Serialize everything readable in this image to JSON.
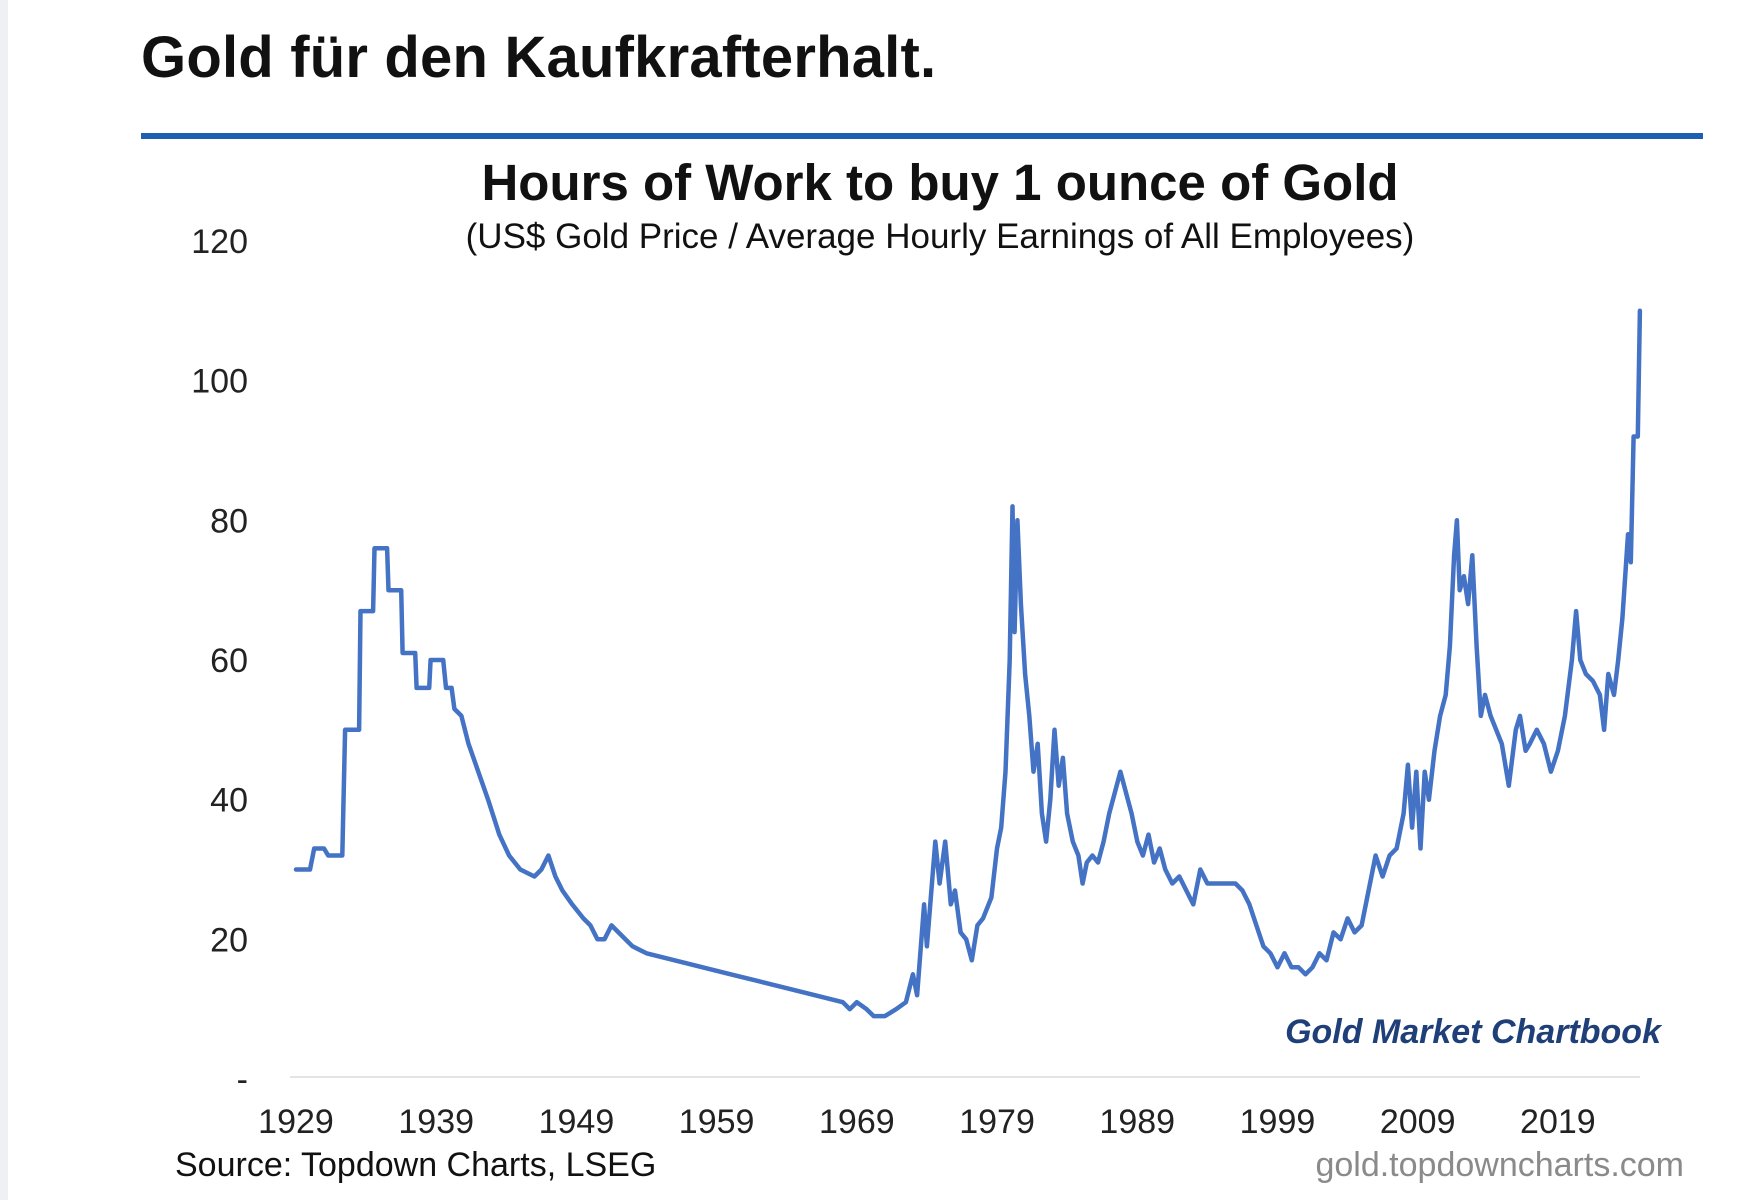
{
  "page": {
    "title": "Gold für den Kaufkrafterhalt.",
    "accent_color": "#1f5fb2"
  },
  "chart_data": {
    "type": "line",
    "title": "Hours of Work to buy 1 ounce of Gold",
    "subtitle": "(US$ Gold Price / Average Hourly Earnings of All Employees)",
    "xlabel": "",
    "ylabel": "",
    "xlim": [
      1929,
      2025
    ],
    "ylim": [
      0,
      120
    ],
    "x_ticks": [
      "1929",
      "1939",
      "1949",
      "1959",
      "1969",
      "1979",
      "1989",
      "1999",
      "2009",
      "2019"
    ],
    "y_ticks": [
      {
        "value": 120,
        "label": "120"
      },
      {
        "value": 100,
        "label": "100"
      },
      {
        "value": 80,
        "label": "80"
      },
      {
        "value": 60,
        "label": "60"
      },
      {
        "value": 40,
        "label": "40"
      },
      {
        "value": 20,
        "label": "20"
      },
      {
        "value": 0,
        "label": "-"
      }
    ],
    "grid": false,
    "legend": "none",
    "line_color": "#4472c4",
    "series": [
      {
        "values": [
          [
            1929.0,
            30
          ],
          [
            1930.0,
            30
          ],
          [
            1930.3,
            33
          ],
          [
            1931.0,
            33
          ],
          [
            1931.3,
            32
          ],
          [
            1932.3,
            32
          ],
          [
            1932.5,
            50
          ],
          [
            1933.5,
            50
          ],
          [
            1933.6,
            67
          ],
          [
            1934.5,
            67
          ],
          [
            1934.6,
            76
          ],
          [
            1935.5,
            76
          ],
          [
            1935.6,
            70
          ],
          [
            1936.5,
            70
          ],
          [
            1936.6,
            61
          ],
          [
            1937.5,
            61
          ],
          [
            1937.6,
            56
          ],
          [
            1938.5,
            56
          ],
          [
            1938.6,
            60
          ],
          [
            1939.5,
            60
          ],
          [
            1939.7,
            56
          ],
          [
            1940.1,
            56
          ],
          [
            1940.3,
            53
          ],
          [
            1940.8,
            52
          ],
          [
            1941.3,
            48
          ],
          [
            1942.0,
            44
          ],
          [
            1942.7,
            40
          ],
          [
            1943.5,
            35
          ],
          [
            1944.2,
            32
          ],
          [
            1945.0,
            30
          ],
          [
            1946.0,
            29
          ],
          [
            1946.5,
            30
          ],
          [
            1947.0,
            32
          ],
          [
            1947.5,
            29
          ],
          [
            1948.0,
            27
          ],
          [
            1948.7,
            25
          ],
          [
            1949.5,
            23
          ],
          [
            1950.0,
            22
          ],
          [
            1950.5,
            20
          ],
          [
            1951.0,
            20
          ],
          [
            1951.5,
            22
          ],
          [
            1952.0,
            21
          ],
          [
            1953.0,
            19
          ],
          [
            1954.0,
            18
          ],
          [
            1956.0,
            17
          ],
          [
            1958.0,
            16
          ],
          [
            1960.0,
            15
          ],
          [
            1962.0,
            14
          ],
          [
            1964.0,
            13
          ],
          [
            1966.0,
            12
          ],
          [
            1968.0,
            11
          ],
          [
            1968.5,
            10
          ],
          [
            1969.0,
            11
          ],
          [
            1969.7,
            10
          ],
          [
            1970.2,
            9
          ],
          [
            1971.0,
            9
          ],
          [
            1971.8,
            10
          ],
          [
            1972.5,
            11
          ],
          [
            1973.0,
            15
          ],
          [
            1973.3,
            12
          ],
          [
            1973.8,
            25
          ],
          [
            1974.0,
            19
          ],
          [
            1974.6,
            34
          ],
          [
            1974.9,
            28
          ],
          [
            1975.3,
            34
          ],
          [
            1975.7,
            25
          ],
          [
            1976.0,
            27
          ],
          [
            1976.4,
            21
          ],
          [
            1976.8,
            20
          ],
          [
            1977.2,
            17
          ],
          [
            1977.6,
            22
          ],
          [
            1978.0,
            23
          ],
          [
            1978.6,
            26
          ],
          [
            1979.0,
            33
          ],
          [
            1979.3,
            36
          ],
          [
            1979.6,
            44
          ],
          [
            1979.9,
            60
          ],
          [
            1980.1,
            82
          ],
          [
            1980.25,
            64
          ],
          [
            1980.45,
            80
          ],
          [
            1980.7,
            68
          ],
          [
            1981.0,
            58
          ],
          [
            1981.3,
            52
          ],
          [
            1981.6,
            44
          ],
          [
            1981.9,
            48
          ],
          [
            1982.2,
            38
          ],
          [
            1982.5,
            34
          ],
          [
            1982.8,
            40
          ],
          [
            1983.1,
            50
          ],
          [
            1983.4,
            42
          ],
          [
            1983.7,
            46
          ],
          [
            1984.0,
            38
          ],
          [
            1984.4,
            34
          ],
          [
            1984.8,
            32
          ],
          [
            1985.1,
            28
          ],
          [
            1985.4,
            31
          ],
          [
            1985.8,
            32
          ],
          [
            1986.2,
            31
          ],
          [
            1986.6,
            34
          ],
          [
            1987.0,
            38
          ],
          [
            1987.4,
            41
          ],
          [
            1987.8,
            44
          ],
          [
            1988.2,
            41
          ],
          [
            1988.6,
            38
          ],
          [
            1989.0,
            34
          ],
          [
            1989.4,
            32
          ],
          [
            1989.8,
            35
          ],
          [
            1990.2,
            31
          ],
          [
            1990.6,
            33
          ],
          [
            1991.0,
            30
          ],
          [
            1991.5,
            28
          ],
          [
            1992.0,
            29
          ],
          [
            1992.5,
            27
          ],
          [
            1993.0,
            25
          ],
          [
            1993.5,
            30
          ],
          [
            1994.0,
            28
          ],
          [
            1995.0,
            28
          ],
          [
            1996.0,
            28
          ],
          [
            1996.5,
            27
          ],
          [
            1997.0,
            25
          ],
          [
            1997.5,
            22
          ],
          [
            1998.0,
            19
          ],
          [
            1998.5,
            18
          ],
          [
            1999.0,
            16
          ],
          [
            1999.5,
            18
          ],
          [
            2000.0,
            16
          ],
          [
            2000.5,
            16
          ],
          [
            2001.0,
            15
          ],
          [
            2001.5,
            16
          ],
          [
            2002.0,
            18
          ],
          [
            2002.5,
            17
          ],
          [
            2003.0,
            21
          ],
          [
            2003.5,
            20
          ],
          [
            2004.0,
            23
          ],
          [
            2004.5,
            21
          ],
          [
            2005.0,
            22
          ],
          [
            2005.5,
            27
          ],
          [
            2006.0,
            32
          ],
          [
            2006.5,
            29
          ],
          [
            2007.0,
            32
          ],
          [
            2007.5,
            33
          ],
          [
            2008.0,
            38
          ],
          [
            2008.3,
            45
          ],
          [
            2008.6,
            36
          ],
          [
            2008.9,
            44
          ],
          [
            2009.2,
            33
          ],
          [
            2009.5,
            44
          ],
          [
            2009.8,
            40
          ],
          [
            2010.2,
            47
          ],
          [
            2010.6,
            52
          ],
          [
            2011.0,
            55
          ],
          [
            2011.3,
            62
          ],
          [
            2011.6,
            75
          ],
          [
            2011.8,
            80
          ],
          [
            2012.0,
            70
          ],
          [
            2012.3,
            72
          ],
          [
            2012.6,
            68
          ],
          [
            2012.9,
            75
          ],
          [
            2013.2,
            62
          ],
          [
            2013.5,
            52
          ],
          [
            2013.8,
            55
          ],
          [
            2014.2,
            52
          ],
          [
            2014.6,
            50
          ],
          [
            2015.0,
            48
          ],
          [
            2015.5,
            42
          ],
          [
            2016.0,
            50
          ],
          [
            2016.3,
            52
          ],
          [
            2016.7,
            47
          ],
          [
            2017.0,
            48
          ],
          [
            2017.5,
            50
          ],
          [
            2018.0,
            48
          ],
          [
            2018.5,
            44
          ],
          [
            2019.0,
            47
          ],
          [
            2019.5,
            52
          ],
          [
            2020.0,
            60
          ],
          [
            2020.3,
            67
          ],
          [
            2020.6,
            60
          ],
          [
            2021.0,
            58
          ],
          [
            2021.5,
            57
          ],
          [
            2022.0,
            55
          ],
          [
            2022.3,
            50
          ],
          [
            2022.6,
            58
          ],
          [
            2023.0,
            55
          ],
          [
            2023.3,
            60
          ],
          [
            2023.6,
            66
          ],
          [
            2024.0,
            78
          ],
          [
            2024.2,
            74
          ],
          [
            2024.4,
            92
          ],
          [
            2024.7,
            92
          ],
          [
            2024.85,
            110
          ]
        ]
      }
    ],
    "annotations": {
      "brand": "Gold Market Chartbook",
      "source": "Source: Topdown Charts, LSEG",
      "url": "gold.topdowncharts.com"
    }
  }
}
